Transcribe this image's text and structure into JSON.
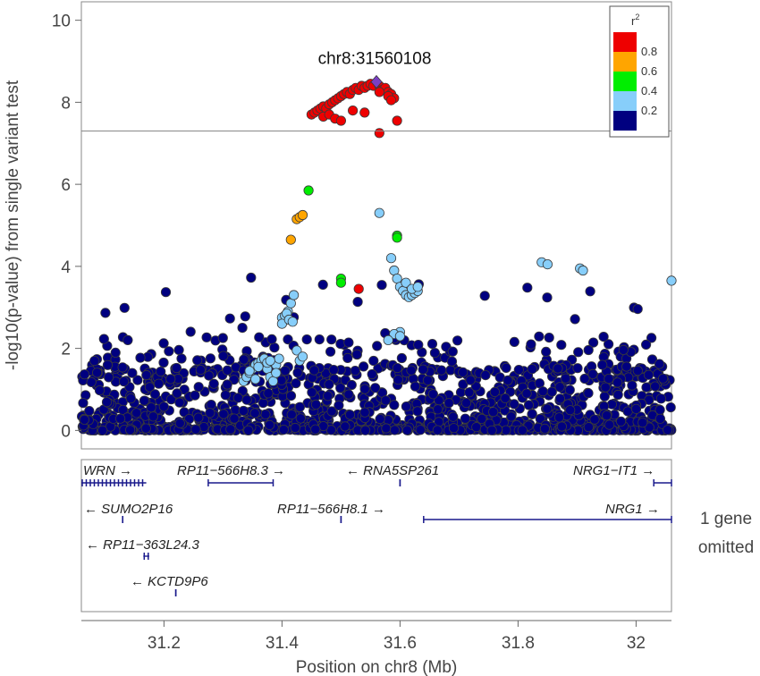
{
  "chart_data": {
    "type": "scatter",
    "title": "",
    "xlabel": "Position on chr8 (Mb)",
    "ylabel": "-log10(p-value) from single variant test",
    "xlim": [
      31.06,
      32.06
    ],
    "ylim": [
      -0.45,
      10.45
    ],
    "x_ticks": [
      31.2,
      31.4,
      31.6,
      31.8,
      32
    ],
    "x_tick_labels": [
      "31.2",
      "31.4",
      "31.6",
      "31.8",
      "32"
    ],
    "y_ticks": [
      0,
      2,
      4,
      6,
      8,
      10
    ],
    "y_tick_labels": [
      "0",
      "2",
      "4",
      "6",
      "8",
      "10"
    ],
    "significance_line": 7.3,
    "lead_snp": {
      "label": "chr8:31560108",
      "x": 31.56,
      "y": 8.5
    },
    "legend": {
      "title": "r",
      "title_sup": "2",
      "placement": "top-right",
      "bins": [
        {
          "color": "#ee0000",
          "label": "0.8"
        },
        {
          "color": "#ffa500",
          "label": "0.6"
        },
        {
          "color": "#00ee00",
          "label": "0.4"
        },
        {
          "color": "#87cefa",
          "label": "0.2"
        },
        {
          "color": "#000080",
          "label": ""
        }
      ]
    },
    "series": [
      {
        "r2_bin": "0.8-1.0",
        "color": "#ee0000",
        "x": [
          31.45,
          31.455,
          31.46,
          31.465,
          31.47,
          31.475,
          31.48,
          31.485,
          31.49,
          31.495,
          31.5,
          31.505,
          31.51,
          31.515,
          31.52,
          31.525,
          31.53,
          31.535,
          31.54,
          31.545,
          31.55,
          31.555,
          31.565,
          31.57,
          31.575,
          31.58,
          31.585,
          31.59,
          31.47,
          31.48,
          31.49,
          31.5,
          31.52,
          31.54,
          31.565,
          31.58,
          31.595,
          31.585,
          31.565,
          31.53
        ],
        "y": [
          7.7,
          7.75,
          7.8,
          7.85,
          7.9,
          7.85,
          7.95,
          8.0,
          8.05,
          8.1,
          8.15,
          8.2,
          8.25,
          8.2,
          8.3,
          8.35,
          8.3,
          8.4,
          8.35,
          8.4,
          8.45,
          8.4,
          8.4,
          8.3,
          8.35,
          8.25,
          8.2,
          8.1,
          7.65,
          7.7,
          7.6,
          7.55,
          7.8,
          7.75,
          7.25,
          8.15,
          7.55,
          8.05,
          8.25,
          3.45
        ]
      },
      {
        "r2_bin": "0.6-0.8",
        "color": "#ffa500",
        "x": [
          31.425,
          31.43,
          31.435,
          31.415
        ],
        "y": [
          5.15,
          5.2,
          5.25,
          4.65
        ]
      },
      {
        "r2_bin": "0.4-0.6",
        "color": "#00ee00",
        "x": [
          31.445,
          31.5,
          31.5,
          31.595,
          31.595
        ],
        "y": [
          5.85,
          3.7,
          3.6,
          4.75,
          4.7
        ]
      },
      {
        "r2_bin": "0.2-0.4",
        "color": "#87cefa",
        "x": [
          31.335,
          31.34,
          31.345,
          31.35,
          31.355,
          31.36,
          31.365,
          31.37,
          31.375,
          31.38,
          31.385,
          31.39,
          31.395,
          31.4,
          31.405,
          31.41,
          31.415,
          31.42,
          31.425,
          31.43,
          31.435,
          31.345,
          31.36,
          31.375,
          31.39,
          31.355,
          31.38,
          31.4,
          31.408,
          31.412,
          31.418,
          31.565,
          31.585,
          31.59,
          31.595,
          31.6,
          31.605,
          31.61,
          31.615,
          31.62,
          31.625,
          31.63,
          31.61,
          31.62,
          31.63,
          31.6,
          31.59,
          31.84,
          31.85,
          31.905,
          31.91,
          32.06,
          31.58,
          31.6
        ],
        "y": [
          1.2,
          1.3,
          1.4,
          1.5,
          1.6,
          1.65,
          1.7,
          1.75,
          1.5,
          1.3,
          1.2,
          1.6,
          1.75,
          2.75,
          2.8,
          2.9,
          3.1,
          3.3,
          1.95,
          1.7,
          1.8,
          1.45,
          1.55,
          1.65,
          1.4,
          1.25,
          1.7,
          2.6,
          2.85,
          2.7,
          2.65,
          5.3,
          4.2,
          3.9,
          3.7,
          3.5,
          3.4,
          3.3,
          3.25,
          3.3,
          3.35,
          3.4,
          3.6,
          3.45,
          3.5,
          2.4,
          2.35,
          4.1,
          4.05,
          3.95,
          3.9,
          3.65,
          2.2,
          2.3
        ]
      }
    ],
    "background_variants": {
      "r2_bin": "0.0-0.2",
      "color": "#000080",
      "n": 1400,
      "range_note": "dense cloud of variants with -log10(p) mostly between 0 and 2, scattered up to 3.8"
    },
    "genes": [
      {
        "name": "WRN",
        "direction": "→",
        "start": 31.06,
        "end": 31.17,
        "row": 0,
        "exons": true
      },
      {
        "name": "RP11−566H8.3",
        "direction": "→",
        "start": 31.275,
        "end": 31.385,
        "row": 0,
        "exons": false
      },
      {
        "name": "RNA5SP261",
        "direction": "←",
        "start": 31.6,
        "end": 31.6,
        "row": 0,
        "exons": false
      },
      {
        "name": "NRG1−IT1",
        "direction": "→",
        "start": 32.03,
        "end": 32.06,
        "row": 0,
        "exons": false
      },
      {
        "name": "SUMO2P16",
        "direction": "←",
        "start": 31.13,
        "end": 31.13,
        "row": 1,
        "exons": false
      },
      {
        "name": "RP11−566H8.1",
        "direction": "→",
        "start": 31.5,
        "end": 31.5,
        "row": 1,
        "exons": false
      },
      {
        "name": "NRG1",
        "direction": "→",
        "start": 31.64,
        "end": 32.06,
        "row": 1,
        "exons": false
      },
      {
        "name": "RP11−363L24.3",
        "direction": "←",
        "start": 31.165,
        "end": 31.175,
        "row": 2,
        "exons": true
      },
      {
        "name": "KCTD9P6",
        "direction": "←",
        "start": 31.22,
        "end": 31.22,
        "row": 3,
        "exons": false
      }
    ],
    "genes_omitted_note": [
      "1 gene",
      "omitted"
    ]
  }
}
